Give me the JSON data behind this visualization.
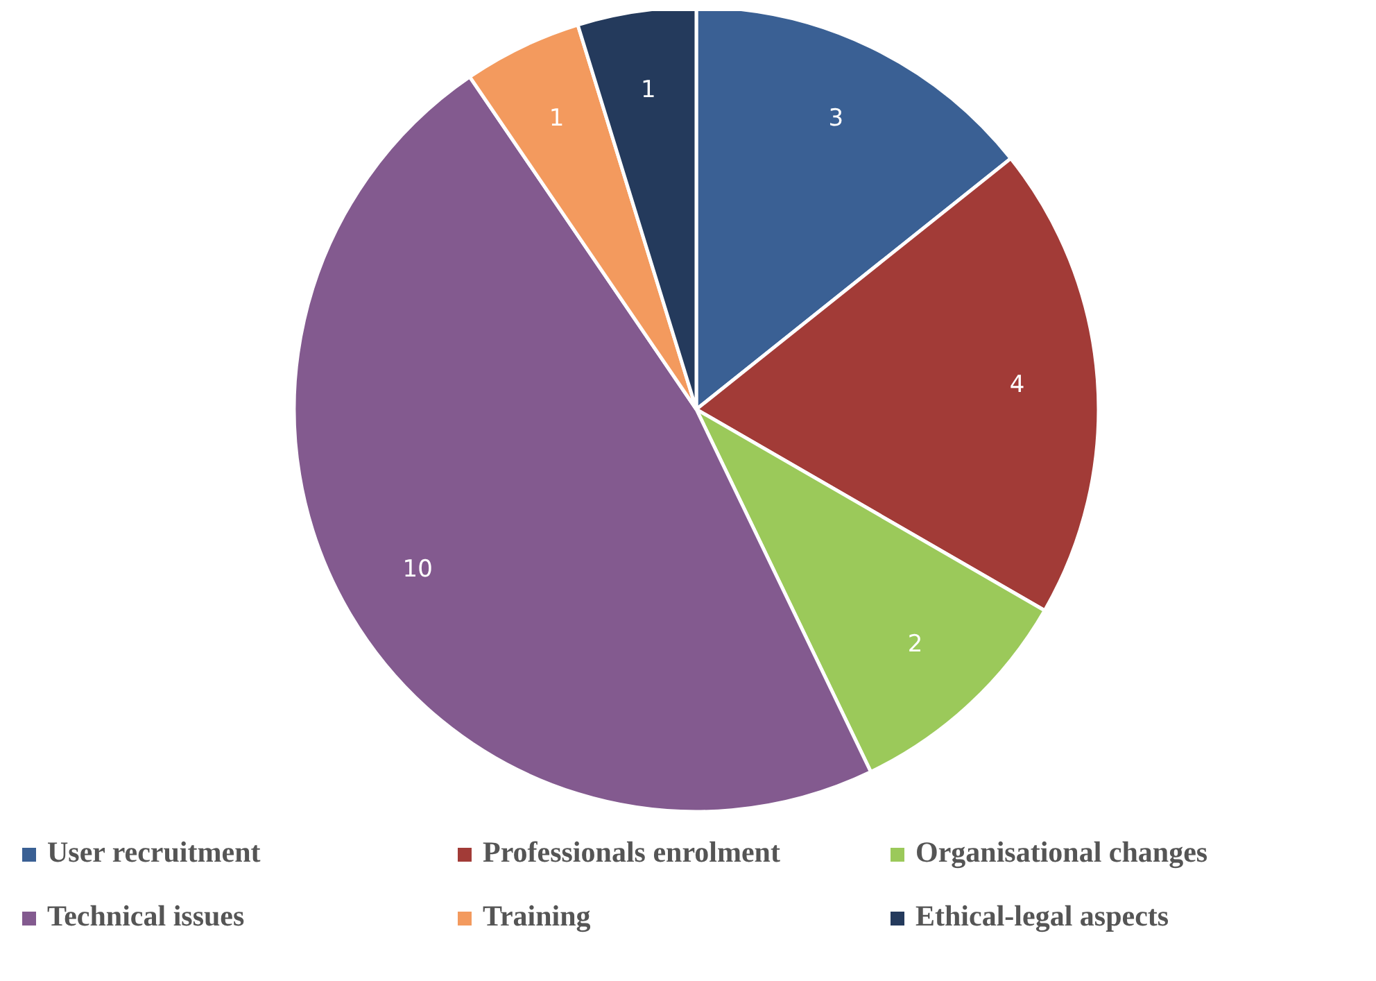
{
  "chart_data": {
    "type": "pie",
    "categories": [
      "User recruitment",
      "Professionals enrolment",
      "Organisational changes",
      "Technical issues",
      "Training",
      "Ethical-legal aspects"
    ],
    "values": [
      3,
      4,
      2,
      10,
      1,
      1
    ],
    "colors": [
      "#3a6094",
      "#a23b37",
      "#9bc95a",
      "#835a8f",
      "#f39a5e",
      "#243a5c"
    ],
    "data_labels": true,
    "legend": "bottom"
  }
}
